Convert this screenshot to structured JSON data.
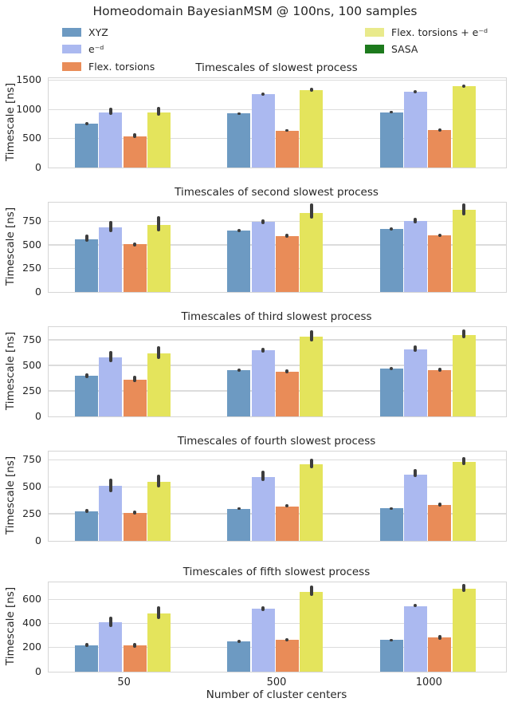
{
  "figure": {
    "title": "Homeodomain BayesianMSM @ 100ns, 100 samples",
    "colors": {
      "background": "#ffffff",
      "text": "#262626",
      "grid": "#dcdcdc",
      "frame": "#d5d5d5",
      "error_bar": "#3d3d3d"
    }
  },
  "legend": {
    "columns": [
      {
        "items": [
          {
            "label": "XYZ",
            "color": "#6d9ac2"
          },
          {
            "label": "e⁻ᵈ",
            "color": "#abb9f0"
          },
          {
            "label": "Flex. torsions",
            "color": "#e98c58"
          }
        ]
      },
      {
        "items": [
          {
            "label": "Flex. torsions + e⁻ᵈ",
            "color": "#e9ea8c"
          },
          {
            "label": "SASA",
            "color": "#1d7a1d"
          }
        ]
      }
    ]
  },
  "x_axis": {
    "label": "Number of cluster centers",
    "categories": [
      "50",
      "500",
      "1000"
    ]
  },
  "chart_data": [
    {
      "type": "bar",
      "title": "Timescales of slowest process",
      "ylabel": "Timescale [ns]",
      "categories": [
        "50",
        "500",
        "1000"
      ],
      "yticks": [
        0,
        500,
        1000,
        1500
      ],
      "ylim": [
        0,
        1540
      ],
      "grid": true,
      "show_x_tick_labels": false,
      "series": [
        {
          "name": "XYZ",
          "color": "#6d9ac2",
          "values": [
            750,
            930,
            955
          ],
          "err_lo": [
            725,
            912,
            935
          ],
          "err_hi": [
            780,
            950,
            975
          ]
        },
        {
          "name": "e⁻ᵈ",
          "color": "#abb9f0",
          "values": [
            950,
            1265,
            1300
          ],
          "err_lo": [
            905,
            1240,
            1280
          ],
          "err_hi": [
            1030,
            1292,
            1330
          ]
        },
        {
          "name": "Flex. torsions",
          "color": "#e98c58",
          "values": [
            540,
            635,
            645
          ],
          "err_lo": [
            510,
            615,
            625
          ],
          "err_hi": [
            590,
            662,
            678
          ]
        },
        {
          "name": "Flex. torsions + e⁻ᵈ",
          "color": "#e4e45c",
          "values": [
            955,
            1330,
            1405
          ],
          "err_lo": [
            890,
            1300,
            1378
          ],
          "err_hi": [
            1040,
            1372,
            1432
          ]
        }
      ]
    },
    {
      "type": "bar",
      "title": "Timescales of second slowest process",
      "ylabel": "Timescale [ns]",
      "categories": [
        "50",
        "500",
        "1000"
      ],
      "yticks": [
        0,
        250,
        500,
        750
      ],
      "ylim": [
        0,
        950
      ],
      "grid": true,
      "show_x_tick_labels": false,
      "series": [
        {
          "name": "XYZ",
          "color": "#6d9ac2",
          "values": [
            560,
            650,
            670
          ],
          "err_lo": [
            533,
            635,
            652
          ],
          "err_hi": [
            607,
            668,
            690
          ]
        },
        {
          "name": "e⁻ᵈ",
          "color": "#abb9f0",
          "values": [
            685,
            745,
            752
          ],
          "err_lo": [
            638,
            720,
            730
          ],
          "err_hi": [
            755,
            772,
            788
          ]
        },
        {
          "name": "Flex. torsions",
          "color": "#e98c58",
          "values": [
            505,
            595,
            605
          ],
          "err_lo": [
            483,
            578,
            588
          ],
          "err_hi": [
            528,
            615,
            622
          ]
        },
        {
          "name": "Flex. torsions + e⁻ᵈ",
          "color": "#e4e45c",
          "values": [
            715,
            840,
            870
          ],
          "err_lo": [
            648,
            780,
            815
          ],
          "err_hi": [
            805,
            945,
            943
          ]
        }
      ]
    },
    {
      "type": "bar",
      "title": "Timescales of third slowest process",
      "ylabel": "Timescale [ns]",
      "categories": [
        "50",
        "500",
        "1000"
      ],
      "yticks": [
        0,
        250,
        500,
        750
      ],
      "ylim": [
        0,
        875
      ],
      "grid": true,
      "show_x_tick_labels": false,
      "series": [
        {
          "name": "XYZ",
          "color": "#6d9ac2",
          "values": [
            400,
            455,
            465
          ],
          "err_lo": [
            378,
            440,
            450
          ],
          "err_hi": [
            425,
            472,
            487
          ]
        },
        {
          "name": "e⁻ᵈ",
          "color": "#abb9f0",
          "values": [
            575,
            645,
            655
          ],
          "err_lo": [
            532,
            625,
            635
          ],
          "err_hi": [
            640,
            672,
            692
          ]
        },
        {
          "name": "Flex. torsions",
          "color": "#e98c58",
          "values": [
            360,
            440,
            455
          ],
          "err_lo": [
            338,
            425,
            438
          ],
          "err_hi": [
            395,
            462,
            478
          ]
        },
        {
          "name": "Flex. torsions + e⁻ᵈ",
          "color": "#e4e45c",
          "values": [
            615,
            780,
            800
          ],
          "err_lo": [
            562,
            738,
            768
          ],
          "err_hi": [
            690,
            845,
            852
          ]
        }
      ]
    },
    {
      "type": "bar",
      "title": "Timescales of fourth slowest process",
      "ylabel": "Timescale [ns]",
      "categories": [
        "50",
        "500",
        "1000"
      ],
      "yticks": [
        0,
        250,
        500,
        750
      ],
      "ylim": [
        0,
        825
      ],
      "grid": true,
      "show_x_tick_labels": false,
      "series": [
        {
          "name": "XYZ",
          "color": "#6d9ac2",
          "values": [
            270,
            295,
            300
          ],
          "err_lo": [
            255,
            284,
            290
          ],
          "err_hi": [
            292,
            310,
            312
          ]
        },
        {
          "name": "e⁻ᵈ",
          "color": "#abb9f0",
          "values": [
            505,
            590,
            615
          ],
          "err_lo": [
            452,
            552,
            588
          ],
          "err_hi": [
            578,
            648,
            662
          ]
        },
        {
          "name": "Flex. torsions",
          "color": "#e98c58",
          "values": [
            260,
            320,
            335
          ],
          "err_lo": [
            244,
            306,
            320
          ],
          "err_hi": [
            280,
            336,
            356
          ]
        },
        {
          "name": "Flex. torsions + e⁻ᵈ",
          "color": "#e4e45c",
          "values": [
            545,
            705,
            730
          ],
          "err_lo": [
            492,
            672,
            698
          ],
          "err_hi": [
            612,
            758,
            772
          ]
        }
      ]
    },
    {
      "type": "bar",
      "title": "Timescales of fifth slowest process",
      "ylabel": "Timescale [ns]",
      "categories": [
        "50",
        "500",
        "1000"
      ],
      "yticks": [
        0,
        200,
        400,
        600
      ],
      "ylim": [
        0,
        740
      ],
      "grid": true,
      "show_x_tick_labels": true,
      "series": [
        {
          "name": "XYZ",
          "color": "#6d9ac2",
          "values": [
            215,
            250,
            262
          ],
          "err_lo": [
            203,
            236,
            250
          ],
          "err_hi": [
            235,
            266,
            274
          ]
        },
        {
          "name": "e⁻ᵈ",
          "color": "#abb9f0",
          "values": [
            410,
            520,
            545
          ],
          "err_lo": [
            372,
            504,
            533
          ],
          "err_hi": [
            456,
            540,
            562
          ]
        },
        {
          "name": "Flex. torsions",
          "color": "#e98c58",
          "values": [
            215,
            262,
            282
          ],
          "err_lo": [
            199,
            249,
            265
          ],
          "err_hi": [
            237,
            277,
            305
          ]
        },
        {
          "name": "Flex. torsions + e⁻ᵈ",
          "color": "#e4e45c",
          "values": [
            480,
            660,
            690
          ],
          "err_lo": [
            438,
            630,
            660
          ],
          "err_hi": [
            542,
            716,
            730
          ]
        }
      ]
    }
  ]
}
